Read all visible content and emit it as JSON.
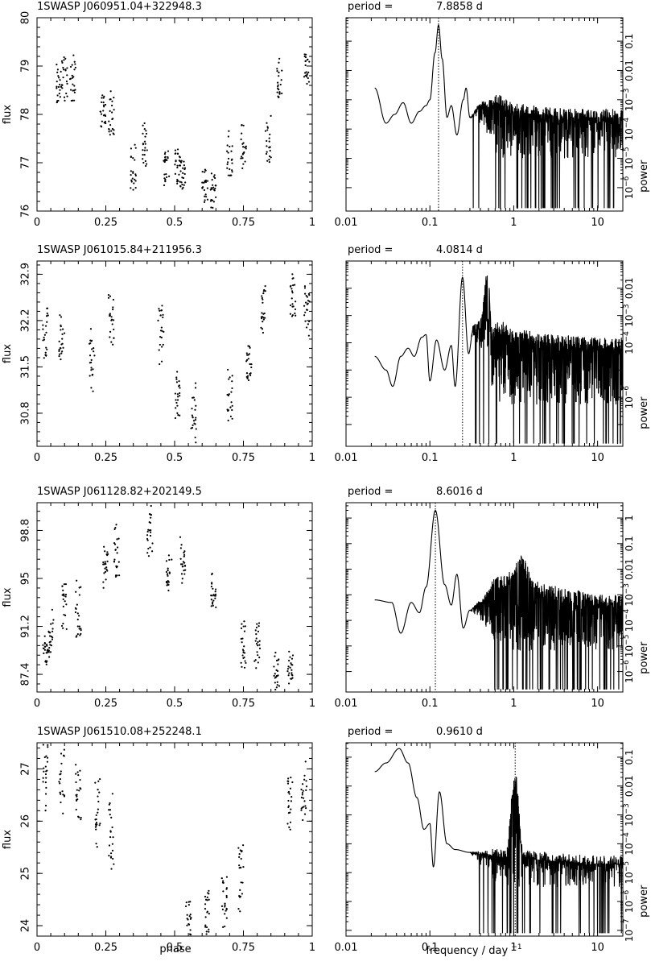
{
  "figure": {
    "phase_label": "phase",
    "freq_label": "frequency / day",
    "freq_label_exp": "−1",
    "flux_label": "flux",
    "power_label": "power",
    "period_prefix": "period ="
  },
  "chart_data": [
    {
      "type": "scatter",
      "title": "1SWASP J060951.04+322948.3",
      "xlabel": "phase",
      "ylabel": "flux",
      "xlim": [
        0,
        1
      ],
      "ylim": [
        76,
        80
      ],
      "xticks": [
        "0",
        "0.25",
        "0.5",
        "0.75",
        "1"
      ],
      "yticks": [
        {
          "v": 76,
          "t": "76"
        },
        {
          "v": 77,
          "t": "77"
        },
        {
          "v": 78,
          "t": "78"
        },
        {
          "v": 79,
          "t": "79"
        },
        {
          "v": 80,
          "t": "80"
        }
      ],
      "clusters": [
        [
          0.08,
          78.6,
          0.45
        ],
        [
          0.1,
          78.8,
          0.6
        ],
        [
          0.13,
          78.6,
          0.7
        ],
        [
          0.24,
          78.1,
          0.45
        ],
        [
          0.27,
          78.0,
          0.5
        ],
        [
          0.35,
          76.9,
          0.55
        ],
        [
          0.39,
          77.4,
          0.55
        ],
        [
          0.47,
          76.9,
          0.45
        ],
        [
          0.51,
          76.9,
          0.45
        ],
        [
          0.53,
          76.8,
          0.4
        ],
        [
          0.61,
          76.5,
          0.4
        ],
        [
          0.64,
          76.5,
          0.5
        ],
        [
          0.7,
          77.1,
          0.6
        ],
        [
          0.75,
          77.4,
          0.55
        ],
        [
          0.84,
          77.4,
          0.6
        ],
        [
          0.88,
          78.7,
          0.5
        ],
        [
          0.98,
          79.0,
          0.4
        ]
      ]
    },
    {
      "type": "line",
      "subtype": "periodogram",
      "period_value": "7.8858",
      "period_unit": "d",
      "xlabel": "frequency / day−1",
      "ylabel": "power",
      "xscale": "log",
      "yscale": "log",
      "xlim": [
        0.01,
        20
      ],
      "ylim": [
        -6.8,
        -0.2
      ],
      "xticks": [
        {
          "v": 0.01,
          "t": "0.01"
        },
        {
          "v": 0.1,
          "t": "0.1"
        },
        {
          "v": 1,
          "t": "1"
        },
        {
          "v": 10,
          "t": "10"
        }
      ],
      "yticks": [
        {
          "v": -6,
          "t": "10−6"
        },
        {
          "v": -5,
          "t": "10−5"
        },
        {
          "v": -4,
          "t": "10−4"
        },
        {
          "v": -3,
          "t": "10−3"
        },
        {
          "v": -2,
          "t": "0.01"
        },
        {
          "v": -1,
          "t": "0.1"
        }
      ],
      "peak_freq": 0.1268,
      "envelope": [
        [
          0.022,
          -2.6
        ],
        [
          0.03,
          -3.8
        ],
        [
          0.038,
          -3.5
        ],
        [
          0.048,
          -3.1
        ],
        [
          0.06,
          -3.8
        ],
        [
          0.075,
          -3.4
        ],
        [
          0.09,
          -3.2
        ],
        [
          0.1,
          -3.0
        ],
        [
          0.115,
          -1.4
        ],
        [
          0.1268,
          -0.45
        ],
        [
          0.14,
          -1.6
        ],
        [
          0.16,
          -3.6
        ],
        [
          0.18,
          -3.2
        ],
        [
          0.21,
          -4.2
        ],
        [
          0.25,
          -3.0
        ],
        [
          0.27,
          -2.6
        ],
        [
          0.3,
          -3.6
        ],
        [
          0.4,
          -3.2
        ],
        [
          0.6,
          -3.1
        ],
        [
          1.0,
          -3.4
        ],
        [
          2.0,
          -3.5
        ],
        [
          5.0,
          -3.6
        ],
        [
          10.0,
          -3.6
        ],
        [
          20.0,
          -3.6
        ]
      ],
      "noise_start": 0.3,
      "noise_floor": -5.0,
      "noise_span": 2.2
    },
    {
      "type": "scatter",
      "title": "1SWASP J061015.84+211956.3",
      "xlabel": "phase",
      "ylabel": "flux",
      "xlim": [
        0,
        1
      ],
      "ylim": [
        30.3,
        33.1
      ],
      "xticks": [
        "0",
        "0.25",
        "0.5",
        "0.75",
        "1"
      ],
      "yticks": [
        {
          "v": 30.8,
          "t": "30.8"
        },
        {
          "v": 31.5,
          "t": "31.5"
        },
        {
          "v": 32.2,
          "t": "32.2"
        },
        {
          "v": 32.9,
          "t": "32.9"
        }
      ],
      "clusters": [
        [
          0.03,
          31.95,
          0.45
        ],
        [
          0.09,
          31.9,
          0.4
        ],
        [
          0.2,
          31.6,
          0.55
        ],
        [
          0.27,
          32.25,
          0.45
        ],
        [
          0.45,
          32.05,
          0.55
        ],
        [
          0.51,
          31.0,
          0.55
        ],
        [
          0.57,
          30.8,
          0.5
        ],
        [
          0.7,
          31.05,
          0.5
        ],
        [
          0.77,
          31.5,
          0.4
        ],
        [
          0.82,
          32.4,
          0.5
        ],
        [
          0.93,
          32.6,
          0.5
        ],
        [
          0.98,
          32.3,
          0.55
        ]
      ]
    },
    {
      "type": "line",
      "subtype": "periodogram",
      "period_value": "4.0814",
      "period_unit": "d",
      "xlabel": "frequency / day−1",
      "ylabel": "power",
      "xscale": "log",
      "yscale": "log",
      "xlim": [
        0.01,
        20
      ],
      "ylim": [
        -7.8,
        -1.0
      ],
      "xticks": [
        {
          "v": 0.01,
          "t": "0.01"
        },
        {
          "v": 0.1,
          "t": "0.1"
        },
        {
          "v": 1,
          "t": "1"
        },
        {
          "v": 10,
          "t": "10"
        }
      ],
      "yticks": [
        {
          "v": -6,
          "t": "10−6"
        },
        {
          "v": -4,
          "t": "10−4"
        },
        {
          "v": -3,
          "t": "10−3"
        },
        {
          "v": -2,
          "t": "0.01"
        }
      ],
      "peak_freq": 0.245,
      "envelope": [
        [
          0.022,
          -4.5
        ],
        [
          0.03,
          -5.0
        ],
        [
          0.036,
          -5.6
        ],
        [
          0.045,
          -4.5
        ],
        [
          0.055,
          -4.2
        ],
        [
          0.065,
          -4.5
        ],
        [
          0.08,
          -3.8
        ],
        [
          0.09,
          -3.7
        ],
        [
          0.1,
          -5.4
        ],
        [
          0.12,
          -3.9
        ],
        [
          0.15,
          -5.0
        ],
        [
          0.18,
          -4.1
        ],
        [
          0.2,
          -5.6
        ],
        [
          0.245,
          -1.6
        ],
        [
          0.29,
          -4.4
        ],
        [
          0.33,
          -3.4
        ],
        [
          0.4,
          -3.2
        ],
        [
          0.49,
          -1.5
        ],
        [
          0.55,
          -3.6
        ],
        [
          0.7,
          -3.5
        ],
        [
          1.0,
          -3.8
        ],
        [
          3.0,
          -4.0
        ],
        [
          10.0,
          -4.1
        ],
        [
          20.0,
          -4.1
        ]
      ],
      "noise_start": 0.3,
      "noise_floor": -6.3,
      "noise_span": 2.4
    },
    {
      "type": "scatter",
      "title": "1SWASP J061128.82+202149.5",
      "xlabel": "phase",
      "ylabel": "flux",
      "xlim": [
        0,
        1
      ],
      "ylim": [
        86.0,
        101.0
      ],
      "xticks": [
        "0",
        "0.25",
        "0.5",
        "0.75",
        "1"
      ],
      "yticks": [
        {
          "v": 87.4,
          "t": "87.4"
        },
        {
          "v": 91.2,
          "t": "91.2"
        },
        {
          "v": 95,
          "t": "95"
        },
        {
          "v": 98.8,
          "t": "98.8"
        }
      ],
      "clusters": [
        [
          0.03,
          89.3,
          1.2
        ],
        [
          0.05,
          90.5,
          2.5
        ],
        [
          0.1,
          92.8,
          2.5
        ],
        [
          0.15,
          92.5,
          2.5
        ],
        [
          0.25,
          96.0,
          2.0
        ],
        [
          0.29,
          97.5,
          3.0
        ],
        [
          0.41,
          98.5,
          2.5
        ],
        [
          0.48,
          95.5,
          1.5
        ],
        [
          0.53,
          96.3,
          2.0
        ],
        [
          0.64,
          94.2,
          2.0
        ],
        [
          0.75,
          90.0,
          2.5
        ],
        [
          0.8,
          89.8,
          2.0
        ],
        [
          0.87,
          87.6,
          1.8
        ],
        [
          0.92,
          87.8,
          1.5
        ]
      ]
    },
    {
      "type": "line",
      "subtype": "periodogram",
      "period_value": "8.6016",
      "period_unit": "d",
      "xlabel": "frequency / day−1",
      "ylabel": "power",
      "xscale": "log",
      "yscale": "log",
      "xlim": [
        0.01,
        20
      ],
      "ylim": [
        -6.8,
        0.6
      ],
      "xticks": [
        {
          "v": 0.01,
          "t": "0.01"
        },
        {
          "v": 0.1,
          "t": "0.1"
        },
        {
          "v": 1,
          "t": "1"
        },
        {
          "v": 10,
          "t": "10"
        }
      ],
      "yticks": [
        {
          "v": -6,
          "t": "10−6"
        },
        {
          "v": -5,
          "t": "10−5"
        },
        {
          "v": -4,
          "t": "10−4"
        },
        {
          "v": -3,
          "t": "10−3"
        },
        {
          "v": -2,
          "t": "0.01"
        },
        {
          "v": -1,
          "t": "0.1"
        },
        {
          "v": 0,
          "t": "1"
        }
      ],
      "peak_freq": 0.1163,
      "envelope": [
        [
          0.022,
          -3.2
        ],
        [
          0.035,
          -3.3
        ],
        [
          0.045,
          -4.5
        ],
        [
          0.06,
          -3.3
        ],
        [
          0.075,
          -3.7
        ],
        [
          0.09,
          -2.7
        ],
        [
          0.1163,
          0.3
        ],
        [
          0.15,
          -2.6
        ],
        [
          0.18,
          -3.4
        ],
        [
          0.21,
          -2.2
        ],
        [
          0.25,
          -4.3
        ],
        [
          0.3,
          -3.6
        ],
        [
          0.4,
          -3.3
        ],
        [
          0.6,
          -2.6
        ],
        [
          1.0,
          -2.3
        ],
        [
          1.15,
          -1.7
        ],
        [
          2.0,
          -2.8
        ],
        [
          5.0,
          -3.1
        ],
        [
          10.0,
          -3.3
        ],
        [
          20.0,
          -3.3
        ]
      ],
      "noise_start": 0.3,
      "noise_floor": -5.2,
      "noise_span": 2.2
    },
    {
      "type": "scatter",
      "title": "1SWASP J061510.08+252248.1",
      "xlabel": "phase",
      "ylabel": "flux",
      "xlim": [
        0,
        1
      ],
      "ylim": [
        23.8,
        27.5
      ],
      "xticks": [
        "0",
        "0.25",
        "0.5",
        "0.75",
        "1"
      ],
      "yticks": [
        {
          "v": 24,
          "t": "24"
        },
        {
          "v": 25,
          "t": "25"
        },
        {
          "v": 26,
          "t": "26"
        },
        {
          "v": 27,
          "t": "27"
        }
      ],
      "clusters": [
        [
          0.03,
          26.9,
          0.8
        ],
        [
          0.09,
          26.85,
          0.8
        ],
        [
          0.15,
          26.5,
          0.8
        ],
        [
          0.22,
          26.2,
          0.8
        ],
        [
          0.27,
          25.8,
          0.9
        ],
        [
          0.55,
          24.1,
          0.5
        ],
        [
          0.62,
          24.2,
          0.6
        ],
        [
          0.68,
          24.6,
          0.7
        ],
        [
          0.74,
          25.0,
          0.8
        ],
        [
          0.92,
          26.4,
          0.6
        ],
        [
          0.97,
          26.5,
          0.7
        ]
      ]
    },
    {
      "type": "line",
      "subtype": "periodogram",
      "period_value": "0.9610",
      "period_unit": "d",
      "xlabel": "frequency / day−1",
      "ylabel": "power",
      "xscale": "log",
      "yscale": "log",
      "xlim": [
        0.01,
        20
      ],
      "ylim": [
        -7.2,
        -0.5
      ],
      "xticks": [
        {
          "v": 0.01,
          "t": "0.01"
        },
        {
          "v": 0.1,
          "t": "0.1"
        },
        {
          "v": 1,
          "t": "1"
        },
        {
          "v": 10,
          "t": "10"
        }
      ],
      "yticks": [
        {
          "v": -7,
          "t": "10−7"
        },
        {
          "v": -6,
          "t": "10−6"
        },
        {
          "v": -5,
          "t": "10−5"
        },
        {
          "v": -4,
          "t": "10−4"
        },
        {
          "v": -3,
          "t": "10−3"
        },
        {
          "v": -2,
          "t": "0.01"
        },
        {
          "v": -1,
          "t": "0.1"
        }
      ],
      "peak_freq": 1.0406,
      "envelope": [
        [
          0.022,
          -1.5
        ],
        [
          0.03,
          -1.2
        ],
        [
          0.043,
          -0.7
        ],
        [
          0.055,
          -1.2
        ],
        [
          0.07,
          -2.4
        ],
        [
          0.085,
          -3.5
        ],
        [
          0.1,
          -3.3
        ],
        [
          0.11,
          -4.8
        ],
        [
          0.13,
          -2.2
        ],
        [
          0.16,
          -4.0
        ],
        [
          0.2,
          -4.2
        ],
        [
          0.3,
          -4.3
        ],
        [
          0.5,
          -4.4
        ],
        [
          0.8,
          -4.5
        ],
        [
          1.0406,
          -1.8
        ],
        [
          1.3,
          -4.5
        ],
        [
          3.0,
          -4.6
        ],
        [
          10.0,
          -4.7
        ],
        [
          20.0,
          -4.7
        ]
      ],
      "noise_start": 0.3,
      "noise_floor": -5.5,
      "noise_span": 2.4
    }
  ]
}
